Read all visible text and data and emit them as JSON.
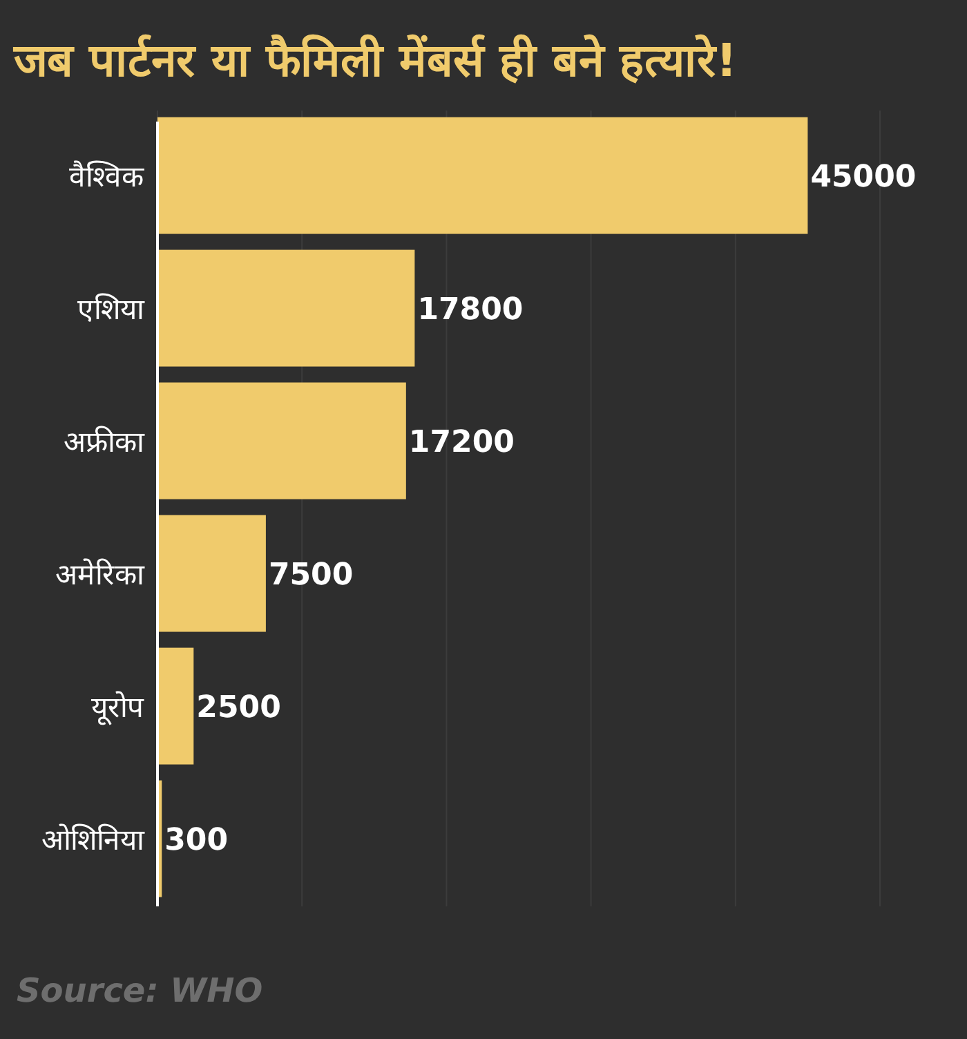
{
  "chart_data": {
    "type": "bar",
    "orientation": "horizontal",
    "title": "जब पार्टनर या फैमिली मेंबर्स ही बने हत्यारे!",
    "categories": [
      "वैश्विक",
      "एशिया",
      "अफ्रीका",
      "अमेरिका",
      "यूरोप",
      "ओशिनिया"
    ],
    "values": [
      45000,
      17800,
      17200,
      7500,
      2500,
      300
    ],
    "color": "#f0cb6c",
    "data_labels": true,
    "xlim": [
      0,
      50000
    ],
    "xticks": [
      {
        "value": 0,
        "label": null
      },
      {
        "value": 10000,
        "label": null
      },
      {
        "value": 20000,
        "label": null
      },
      {
        "value": 30000,
        "label": null
      },
      {
        "value": 40000,
        "label": null
      },
      {
        "value": 50000,
        "label": null
      }
    ],
    "grid": "x",
    "tick_labels": "y",
    "annotations": [
      "Source: WHO"
    ]
  }
}
